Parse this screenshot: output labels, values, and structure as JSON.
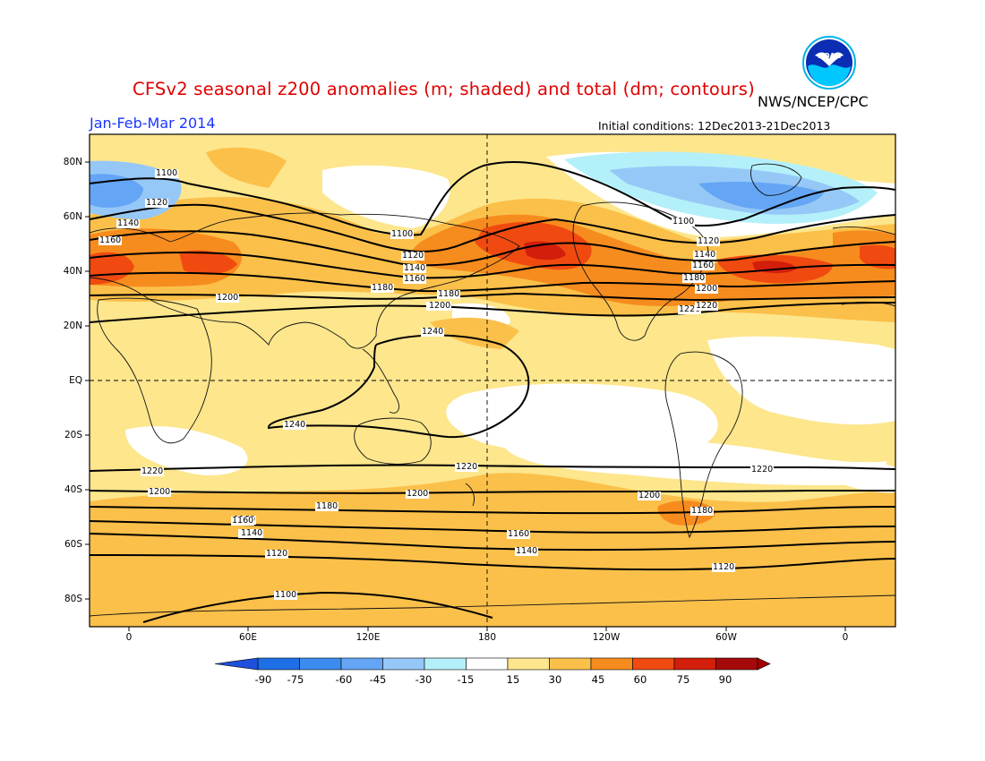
{
  "title": "CFSv2 seasonal z200 anomalies (m; shaded) and total (dm; contours)",
  "agency": "NWS/NCEP/CPC",
  "period": "Jan-Feb-Mar 2014",
  "initial_conditions": "Initial conditions: 12Dec2013-21Dec2013",
  "logo_text": "NOAA",
  "latitude_labels": [
    "80N",
    "60N",
    "40N",
    "20N",
    "EQ",
    "20S",
    "40S",
    "60S",
    "80S"
  ],
  "longitude_labels": [
    "0",
    "60E",
    "120E",
    "180",
    "120W",
    "60W",
    "0"
  ],
  "colorbar": {
    "ticks": [
      "-90",
      "-75",
      "-60",
      "-45",
      "-30",
      "-15",
      "15",
      "30",
      "45",
      "60",
      "75",
      "90"
    ],
    "colors": [
      "#1e6ee6",
      "#3c8cf0",
      "#64a6f5",
      "#96c8f7",
      "#b4f0fa",
      "#ffffff",
      "#fde68c",
      "#fbc04a",
      "#f78c1e",
      "#f04a10",
      "#d21e0a",
      "#a50a0a"
    ],
    "left_arrow_color": "#1e50dc",
    "right_arrow_color": "#a00000"
  },
  "contour_labels": [
    {
      "text": "1100"
    },
    {
      "text": "1120"
    },
    {
      "text": "1140"
    },
    {
      "text": "1160"
    },
    {
      "text": "1180"
    },
    {
      "text": "1200"
    },
    {
      "text": "1220"
    },
    {
      "text": "1240"
    },
    {
      "text": "1240"
    },
    {
      "text": "1220"
    },
    {
      "text": "1200"
    },
    {
      "text": "1180"
    },
    {
      "text": "1160"
    },
    {
      "text": "1140"
    },
    {
      "text": "1120"
    },
    {
      "text": "1100"
    },
    {
      "text": "1100"
    },
    {
      "text": "1120"
    },
    {
      "text": "1140"
    },
    {
      "text": "1160"
    },
    {
      "text": "1180"
    },
    {
      "text": "1200"
    },
    {
      "text": "1220"
    },
    {
      "text": "1220"
    },
    {
      "text": "1200"
    },
    {
      "text": "1160"
    },
    {
      "text": "1140"
    },
    {
      "text": "1100"
    },
    {
      "text": "1120"
    },
    {
      "text": "1140"
    },
    {
      "text": "1160"
    },
    {
      "text": "1180"
    },
    {
      "text": "1200"
    },
    {
      "text": "1220"
    },
    {
      "text": "1200"
    },
    {
      "text": "1180"
    },
    {
      "text": "1120"
    },
    {
      "text": "1220"
    },
    {
      "text": "1200"
    },
    {
      "text": "1160"
    },
    {
      "text": "1140"
    }
  ]
}
